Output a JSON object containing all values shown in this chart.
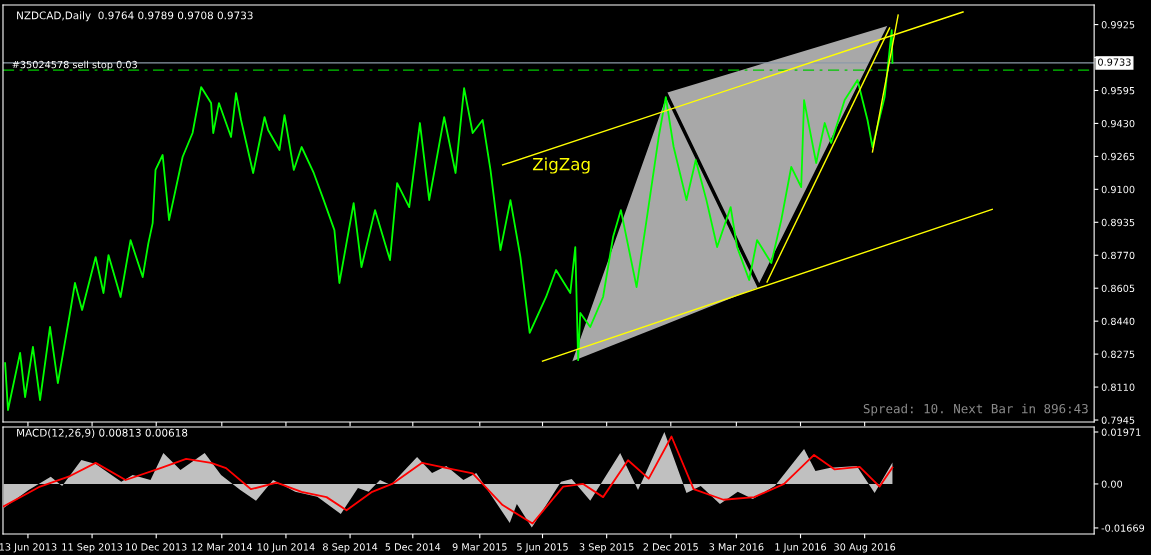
{
  "chart_data": [
    {
      "type": "line",
      "title": "NZDCAD,Daily  0.9764 0.9789 0.9708 0.9733",
      "xlim": [
        "2013-05-09",
        "2017-07-18"
      ],
      "ylim": [
        0.7935,
        1.0023
      ],
      "yticks": [
        {
          "value": 0.7945,
          "label": "0.7945"
        },
        {
          "value": 0.811,
          "label": "0.8110"
        },
        {
          "value": 0.8275,
          "label": "0.8275"
        },
        {
          "value": 0.844,
          "label": "0.8440"
        },
        {
          "value": 0.8605,
          "label": "0.8605"
        },
        {
          "value": 0.877,
          "label": "0.8770"
        },
        {
          "value": 0.8935,
          "label": "0.8935"
        },
        {
          "value": 0.91,
          "label": "0.9100"
        },
        {
          "value": 0.9265,
          "label": "0.9265"
        },
        {
          "value": 0.943,
          "label": "0.9430"
        },
        {
          "value": 0.9595,
          "label": "0.9595"
        },
        {
          "value": 0.976,
          "label": null
        },
        {
          "value": 0.9925,
          "label": "0.9925"
        }
      ],
      "xticks": [
        {
          "value": "2013-06-13",
          "label": null
        },
        {
          "value": "2013-09-11",
          "label": null
        },
        {
          "value": "2013-12-10",
          "label": null
        },
        {
          "value": "2014-03-12",
          "label": null
        },
        {
          "value": "2014-06-10",
          "label": null
        },
        {
          "value": "2014-09-08",
          "label": null
        },
        {
          "value": "2014-12-05",
          "label": null
        },
        {
          "value": "2015-03-09",
          "label": null
        },
        {
          "value": "2015-06-05",
          "label": null
        },
        {
          "value": "2015-09-03",
          "label": null
        },
        {
          "value": "2015-12-02",
          "label": null
        },
        {
          "value": "2016-03-03",
          "label": null
        },
        {
          "value": "2016-06-01",
          "label": null
        },
        {
          "value": "2016-08-30",
          "label": null
        }
      ],
      "tick_labels": "y",
      "grid": false,
      "series": [
        {
          "type": "line",
          "color": "#000000",
          "x": [
            "2015-07-14",
            "2015-11-25",
            "2016-04-04",
            "2016-10-04"
          ],
          "values": [
            0.8236,
            0.9582,
            0.8611,
            0.9922
          ],
          "lower": [
            0.8236,
            0.8425,
            0.8611,
            0.9922
          ],
          "upper": [
            0.8236,
            0.9582,
            0.9724,
            0.9922
          ]
        },
        {
          "color": "#00ff00",
          "x": [
            "2013-05-12",
            "2013-05-16",
            "2013-06-02",
            "2013-06-09",
            "2013-06-20",
            "2013-06-30",
            "2013-07-14",
            "2013-07-25",
            "2013-08-11",
            "2013-08-18",
            "2013-08-28",
            "2013-09-16",
            "2013-09-27",
            "2013-10-04",
            "2013-10-21",
            "2013-11-04",
            "2013-11-21",
            "2013-11-29",
            "2013-12-05",
            "2013-12-09",
            "2013-12-19",
            "2013-12-28",
            "2014-01-16",
            "2014-01-30",
            "2014-02-11",
            "2014-02-25",
            "2014-02-28",
            "2014-03-08",
            "2014-03-25",
            "2014-04-01",
            "2014-04-08",
            "2014-04-25",
            "2014-05-11",
            "2014-05-16",
            "2014-06-01",
            "2014-06-08",
            "2014-06-21",
            "2014-07-02",
            "2014-07-19",
            "2014-08-02",
            "2014-08-17",
            "2014-08-24",
            "2014-09-13",
            "2014-09-24",
            "2014-10-13",
            "2014-11-03",
            "2014-11-13",
            "2014-11-30",
            "2014-12-15",
            "2014-12-28",
            "2015-01-18",
            "2015-02-03",
            "2015-02-15",
            "2015-02-27",
            "2015-03-13",
            "2015-03-24",
            "2015-04-07",
            "2015-04-21",
            "2015-05-05",
            "2015-05-18",
            "2015-06-10",
            "2015-06-24",
            "2015-07-14",
            "2015-07-21",
            "2015-07-25",
            "2015-07-28",
            "2015-08-11",
            "2015-08-29",
            "2015-09-12",
            "2015-09-23",
            "2015-10-15",
            "2015-10-29",
            "2015-11-15",
            "2015-11-25",
            "2015-12-06",
            "2015-12-24",
            "2016-01-06",
            "2016-01-21",
            "2016-02-05",
            "2016-02-24",
            "2016-03-04",
            "2016-03-21",
            "2016-04-01",
            "2016-04-21",
            "2016-05-05",
            "2016-05-19",
            "2016-06-02",
            "2016-06-06",
            "2016-06-23",
            "2016-07-05",
            "2016-07-14",
            "2016-08-02",
            "2016-08-20",
            "2016-09-03",
            "2016-09-10",
            "2016-09-27",
            "2016-10-07",
            "2016-10-08"
          ],
          "values": [
            0.823,
            0.7995,
            0.8281,
            0.806,
            0.8311,
            0.8045,
            0.8411,
            0.813,
            0.8481,
            0.8631,
            0.8496,
            0.8761,
            0.8581,
            0.8771,
            0.8561,
            0.8846,
            0.8661,
            0.8831,
            0.8931,
            0.9197,
            0.9272,
            0.8946,
            0.9262,
            0.9382,
            0.9612,
            0.9532,
            0.9382,
            0.9532,
            0.9362,
            0.9582,
            0.9447,
            0.9182,
            0.9462,
            0.9397,
            0.9297,
            0.9472,
            0.9197,
            0.9312,
            0.9182,
            0.9046,
            0.8896,
            0.8631,
            0.9031,
            0.8711,
            0.8996,
            0.8746,
            0.9131,
            0.9011,
            0.9432,
            0.9046,
            0.9462,
            0.9182,
            0.9607,
            0.9382,
            0.9447,
            0.9197,
            0.8796,
            0.9046,
            0.8761,
            0.8381,
            0.8561,
            0.8696,
            0.8581,
            0.8811,
            0.8245,
            0.8481,
            0.8411,
            0.8561,
            0.8861,
            0.8996,
            0.8611,
            0.8946,
            0.9362,
            0.9562,
            0.9312,
            0.9046,
            0.9247,
            0.9046,
            0.8811,
            0.9011,
            0.8811,
            0.8646,
            0.8846,
            0.8731,
            0.8946,
            0.9212,
            0.9111,
            0.9547,
            0.9232,
            0.9432,
            0.9332,
            0.9547,
            0.9647,
            0.9447,
            0.9312,
            0.9562,
            0.9897,
            0.9733
          ]
        },
        {
          "type": "line",
          "color": "#ffff00",
          "x": [
            "2015-04-10",
            "2017-01-15"
          ],
          "values": [
            0.9222,
            0.9988
          ]
        },
        {
          "type": "line",
          "color": "#ffff00",
          "x": [
            "2015-06-05",
            "2017-02-25"
          ],
          "values": [
            0.824,
            0.9
          ]
        },
        {
          "type": "line",
          "color": "#ffff00",
          "x": [
            "2016-04-15",
            "2016-10-04"
          ],
          "values": [
            0.8636,
            0.9908
          ]
        },
        {
          "type": "line",
          "color": "#ffff00",
          "x": [
            "2016-09-10",
            "2016-10-16"
          ],
          "values": [
            0.9287,
            0.9973
          ]
        }
      ],
      "ref_lines": [
        {
          "axis": "y",
          "value": 0.9733,
          "label": "0.9733",
          "color": "#8c9aa8",
          "line_style": "solid"
        },
        {
          "axis": "y",
          "value": 0.9697,
          "label": "#35024578 sell stop 0.03",
          "color": "#00c800",
          "line_style": "dashed"
        }
      ],
      "annotations": [
        "ZigZag",
        "Spread: 10. Next Bar in 896:43"
      ]
    },
    {
      "type": "area",
      "title": "MACD(12,26,9) 0.00813 0.00618",
      "xlim": [
        "2013-05-09",
        "2017-07-18"
      ],
      "ylim": [
        -0.019,
        0.0216
      ],
      "yticks": [
        0.01971,
        {
          "value": 0,
          "label": "0.00"
        },
        -0.01669
      ],
      "xticks": [
        {
          "value": "2013-06-13",
          "label": "13 Jun 2013"
        },
        {
          "value": "2013-09-11",
          "label": "11 Sep 2013"
        },
        {
          "value": "2013-12-10",
          "label": "10 Dec 2013"
        },
        {
          "value": "2014-03-12",
          "label": "12 Mar 2014"
        },
        {
          "value": "2014-06-10",
          "label": "10 Jun 2014"
        },
        {
          "value": "2014-09-08",
          "label": "8 Sep 2014"
        },
        {
          "value": "2014-12-05",
          "label": "5 Dec 2014"
        },
        {
          "value": "2015-03-09",
          "label": "9 Mar 2015"
        },
        {
          "value": "2015-06-05",
          "label": "5 Jun 2015"
        },
        {
          "value": "2015-09-03",
          "label": "3 Sep 2015"
        },
        {
          "value": "2015-12-02",
          "label": "2 Dec 2015"
        },
        {
          "value": "2016-03-03",
          "label": "3 Mar 2016"
        },
        {
          "value": "2016-06-01",
          "label": "1 Jun 2016"
        },
        {
          "value": "2016-08-30",
          "label": "30 Aug 2016"
        }
      ],
      "grid": false,
      "series": [
        {
          "color": "#c0c0c0",
          "x": [
            "2013-05-10",
            "2013-06-14",
            "2013-07-15",
            "2013-07-31",
            "2013-08-27",
            "2013-09-16",
            "2013-10-22",
            "2013-11-07",
            "2013-12-02",
            "2013-12-20",
            "2014-01-13",
            "2014-02-16",
            "2014-03-11",
            "2014-04-07",
            "2014-04-29",
            "2014-05-23",
            "2014-06-23",
            "2014-07-24",
            "2014-08-26",
            "2014-09-19",
            "2014-10-04",
            "2014-10-20",
            "2014-11-04",
            "2014-12-11",
            "2015-01-01",
            "2015-01-21",
            "2015-02-14",
            "2015-03-04",
            "2015-04-20",
            "2015-04-30",
            "2015-05-21",
            "2015-07-01",
            "2015-07-16",
            "2015-08-11",
            "2015-09-22",
            "2015-10-17",
            "2015-11-23",
            "2015-12-24",
            "2016-01-13",
            "2016-02-09",
            "2016-03-05",
            "2016-03-26",
            "2016-04-26",
            "2016-06-06",
            "2016-06-22",
            "2016-07-13",
            "2016-08-19",
            "2016-09-13",
            "2016-10-08"
          ],
          "values": [
            -0.0091,
            -0.0023,
            0.0027,
            -0.0008,
            0.0091,
            0.0076,
            0.0008,
            0.0034,
            0.0015,
            0.0117,
            0.0053,
            0.0117,
            0.0034,
            -0.0023,
            -0.0064,
            0.0015,
            -0.003,
            -0.0049,
            -0.0114,
            -0.0015,
            -0.003,
            0.0015,
            -0.0004,
            0.0102,
            0.0042,
            0.0068,
            0.0015,
            0.0042,
            -0.0148,
            -0.0076,
            -0.0165,
            0.0008,
            0.0019,
            -0.0064,
            0.0117,
            -0.0023,
            0.0197,
            -0.0034,
            -0.0008,
            -0.0076,
            -0.003,
            -0.0057,
            -0.0008,
            0.0133,
            0.0049,
            0.0061,
            0.0068,
            -0.0034,
            0.0081
          ]
        },
        {
          "type": "line",
          "color": "#ff0000",
          "x": [
            "2013-05-10",
            "2013-06-30",
            "2013-08-11",
            "2013-09-16",
            "2013-10-28",
            "2013-12-16",
            "2014-01-21",
            "2014-02-25",
            "2014-03-18",
            "2014-04-22",
            "2014-05-28",
            "2014-07-02",
            "2014-08-06",
            "2014-09-03",
            "2014-10-09",
            "2014-11-06",
            "2014-12-18",
            "2015-01-22",
            "2015-02-27",
            "2015-04-10",
            "2015-05-22",
            "2015-07-04",
            "2015-08-01",
            "2015-08-29",
            "2015-10-03",
            "2015-11-01",
            "2015-12-03",
            "2016-01-03",
            "2016-02-14",
            "2016-03-28",
            "2016-05-09",
            "2016-06-20",
            "2016-07-19",
            "2016-08-23",
            "2016-09-20",
            "2016-10-08"
          ],
          "values": [
            -0.0085,
            -0.001,
            0.003,
            0.008,
            0.0015,
            0.006,
            0.0095,
            0.008,
            0.006,
            -0.002,
            0.0005,
            -0.003,
            -0.005,
            -0.01,
            -0.003,
            0.0,
            0.008,
            0.006,
            0.004,
            -0.008,
            -0.015,
            -0.001,
            0.0,
            -0.005,
            0.009,
            0.002,
            0.018,
            -0.002,
            -0.006,
            -0.005,
            0.0,
            0.011,
            0.0055,
            0.0065,
            -0.001,
            0.0062
          ]
        }
      ]
    }
  ]
}
